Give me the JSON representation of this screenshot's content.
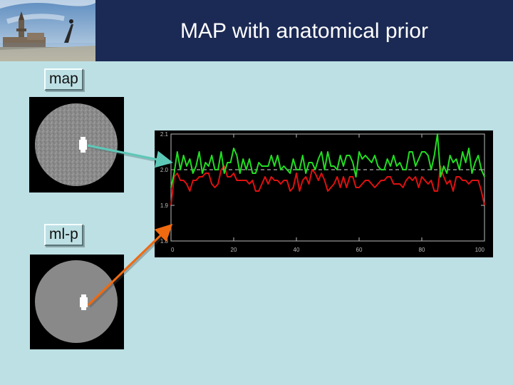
{
  "slide": {
    "title": "MAP with anatomical prior",
    "labels": {
      "map": "map",
      "mlp": "ml-p"
    }
  },
  "colors": {
    "header_bg": "#1b2a54",
    "slide_bg": "#bde0e4",
    "map_series": "#22dd22",
    "mlp_series": "#e01010",
    "arrow_map": "#5ec8b8",
    "arrow_mlp": "#f06a10"
  },
  "chart_data": {
    "type": "line",
    "title": "",
    "xlabel": "",
    "ylabel": "",
    "xlim": [
      0,
      100
    ],
    "ylim": [
      1.8,
      2.1
    ],
    "x_ticks": [
      "0",
      "20",
      "40",
      "60",
      "80",
      "100"
    ],
    "y_ticks": [
      "1.8",
      "1.9",
      "2.0",
      "2.1"
    ],
    "reference_line": 2.0,
    "series": [
      {
        "color": "#22dd22",
        "values": [
          1.95,
          1.99,
          2.05,
          2.0,
          2.04,
          2.01,
          2.03,
          1.99,
          2.01,
          2.05,
          1.99,
          2.02,
          2.01,
          2.04,
          2.0,
          2.0,
          2.05,
          1.99,
          2.02,
          2.02,
          2.06,
          2.04,
          1.99,
          2.03,
          2.0,
          2.03,
          1.99,
          1.99,
          2.02,
          2.01,
          2.01,
          2.01,
          2.04,
          2.01,
          2.04,
          2.0,
          2.01,
          2.0,
          1.99,
          2.03,
          2.0,
          2.0,
          2.04,
          1.99,
          2.02,
          2.02,
          2.0,
          2.03,
          2.05,
          2.0,
          2.05,
          2.01,
          2.01,
          2.0,
          2.04,
          2.01,
          2.04,
          2.04,
          2.02,
          1.98,
          2.05,
          2.03,
          2.04,
          2.03,
          2.02,
          2.04,
          2.01,
          2.0,
          2.0,
          2.03,
          2.01,
          2.04,
          2.01,
          2.02,
          2.0,
          2.0,
          2.05,
          2.05,
          2.01,
          2.03,
          2.05,
          2.05,
          2.04,
          2.0,
          2.04,
          2.1,
          1.98,
          2.01,
          1.99,
          2.04,
          2.02,
          2.03,
          2.0,
          2.05,
          2.02,
          2.06,
          1.99,
          2.02,
          2.04,
          2.0,
          1.98
        ]
      },
      {
        "color": "#e01010",
        "values": [
          1.9,
          1.98,
          1.99,
          1.97,
          1.97,
          1.96,
          1.94,
          1.97,
          1.97,
          1.98,
          1.98,
          1.99,
          1.99,
          1.96,
          1.95,
          1.96,
          2.0,
          2.01,
          1.98,
          1.98,
          1.99,
          1.97,
          1.97,
          1.97,
          1.97,
          1.96,
          1.97,
          1.94,
          1.94,
          1.96,
          1.98,
          1.96,
          1.98,
          1.97,
          1.97,
          1.96,
          1.97,
          1.97,
          1.94,
          1.95,
          1.99,
          1.94,
          1.97,
          1.98,
          1.96,
          2.0,
          1.99,
          1.97,
          1.99,
          1.97,
          1.94,
          1.95,
          1.96,
          1.98,
          1.95,
          1.98,
          1.95,
          1.98,
          1.98,
          1.95,
          1.95,
          1.96,
          1.97,
          1.97,
          1.96,
          1.95,
          1.96,
          1.97,
          1.97,
          1.98,
          1.98,
          1.96,
          1.96,
          1.96,
          1.95,
          1.97,
          1.98,
          1.97,
          1.98,
          1.95,
          1.98,
          1.97,
          1.96,
          1.97,
          1.94,
          1.94,
          2.01,
          1.98,
          1.96,
          1.97,
          1.94,
          1.98,
          1.98,
          1.97,
          1.97,
          1.96,
          1.97,
          1.97,
          1.97,
          1.94,
          1.9
        ]
      }
    ]
  }
}
